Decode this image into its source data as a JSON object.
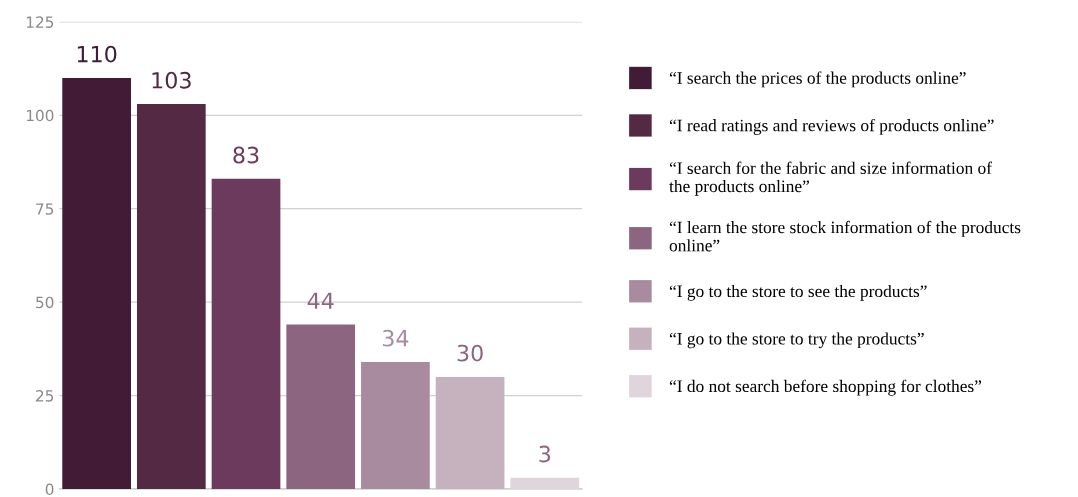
{
  "chart_data": {
    "type": "bar",
    "categories": [
      null
    ],
    "series": [
      {
        "name": "“I search the prices of the products online”",
        "color": "#421c36",
        "values": [
          110
        ]
      },
      {
        "name": "“I read ratings and reviews of products online”",
        "color": "#532943",
        "values": [
          103
        ]
      },
      {
        "name": "“I search for the fabric and size information of\nthe products online”",
        "color": "#6c3a5c",
        "values": [
          83
        ]
      },
      {
        "name": "“I learn the store stock information of the products\nonline”",
        "color": "#8c6680",
        "values": [
          44
        ]
      },
      {
        "name": "“I go to the store to see the products”",
        "color": "#a88b9f",
        "values": [
          34
        ]
      },
      {
        "name": "“I go to the store to try the products”",
        "color": "#c6b1bf",
        "values": [
          30
        ]
      },
      {
        "name": "“I do not search before shopping for clothes”",
        "color": "#e0d5dc",
        "values": [
          3
        ]
      }
    ],
    "ylim": [
      0,
      125
    ],
    "yticks": [
      0,
      25,
      50,
      75,
      100,
      125
    ],
    "grid": "y",
    "data_labels": true,
    "legend": "right",
    "tick_labels": "y"
  }
}
